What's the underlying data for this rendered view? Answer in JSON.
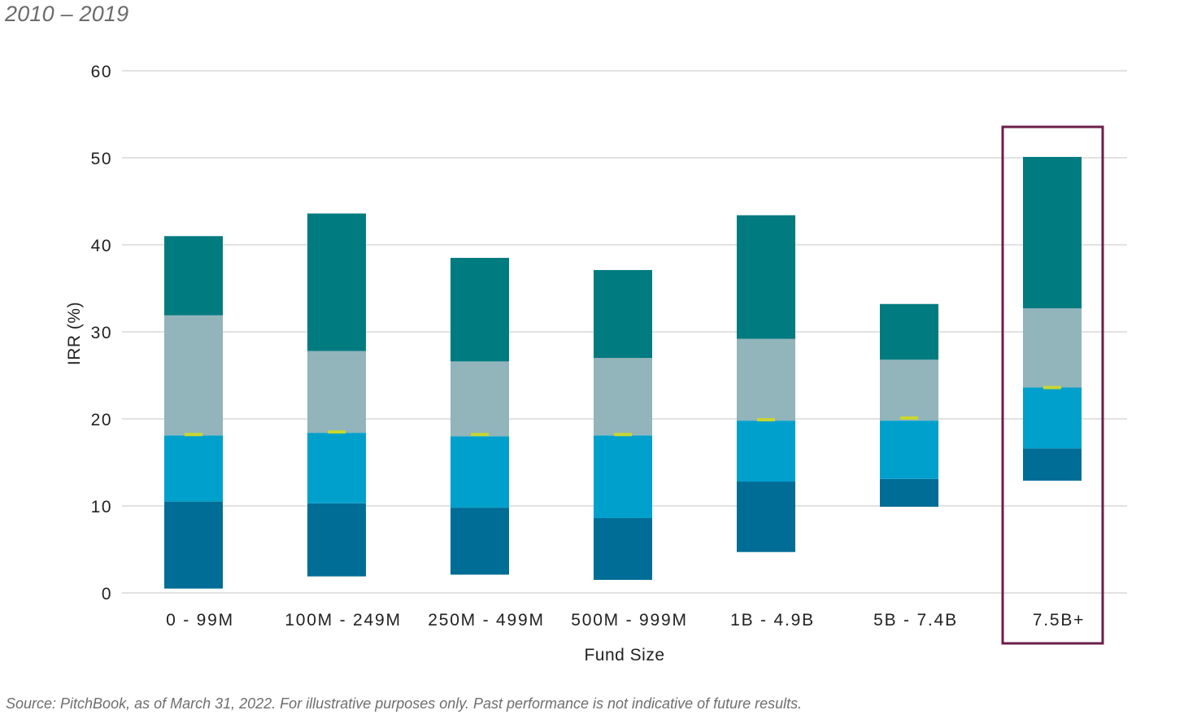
{
  "subtitle": "2010 – 2019",
  "source": "Source: PitchBook, as of March 31, 2022. For illustrative purposes only. Past performance is not indicative of future results.",
  "chart_data": {
    "type": "bar",
    "subtype": "floating-stacked-range",
    "xlabel": "Fund Size",
    "ylabel": "IRR (%)",
    "ylim": [
      0,
      60
    ],
    "yticks": [
      0,
      10,
      20,
      30,
      40,
      50,
      60
    ],
    "grid": true,
    "categories": [
      "0 - 99M",
      "100M - 249M",
      "250M - 499M",
      "500M - 999M",
      "1B - 4.9B",
      "5B - 7.4B",
      "7.5B+"
    ],
    "boundaries": [
      [
        0.5,
        10.5,
        18.1,
        31.9,
        41.0
      ],
      [
        1.9,
        10.3,
        18.4,
        27.8,
        43.6
      ],
      [
        2.1,
        9.8,
        18.0,
        26.6,
        38.5
      ],
      [
        1.5,
        8.6,
        18.1,
        27.0,
        37.1
      ],
      [
        4.7,
        12.8,
        19.8,
        29.2,
        43.4
      ],
      [
        9.9,
        13.1,
        19.8,
        26.8,
        33.2
      ],
      [
        12.9,
        16.6,
        23.6,
        32.7,
        50.1
      ]
    ],
    "medians": [
      18.2,
      18.5,
      18.2,
      18.2,
      19.9,
      20.1,
      23.6
    ],
    "segment_colors": [
      "#006d96",
      "#00a0cc",
      "#92b4bb",
      "#007b80"
    ],
    "median_color": "#c8d630",
    "highlight_category": "7.5B+",
    "highlight_color": "#6b1f4a"
  }
}
